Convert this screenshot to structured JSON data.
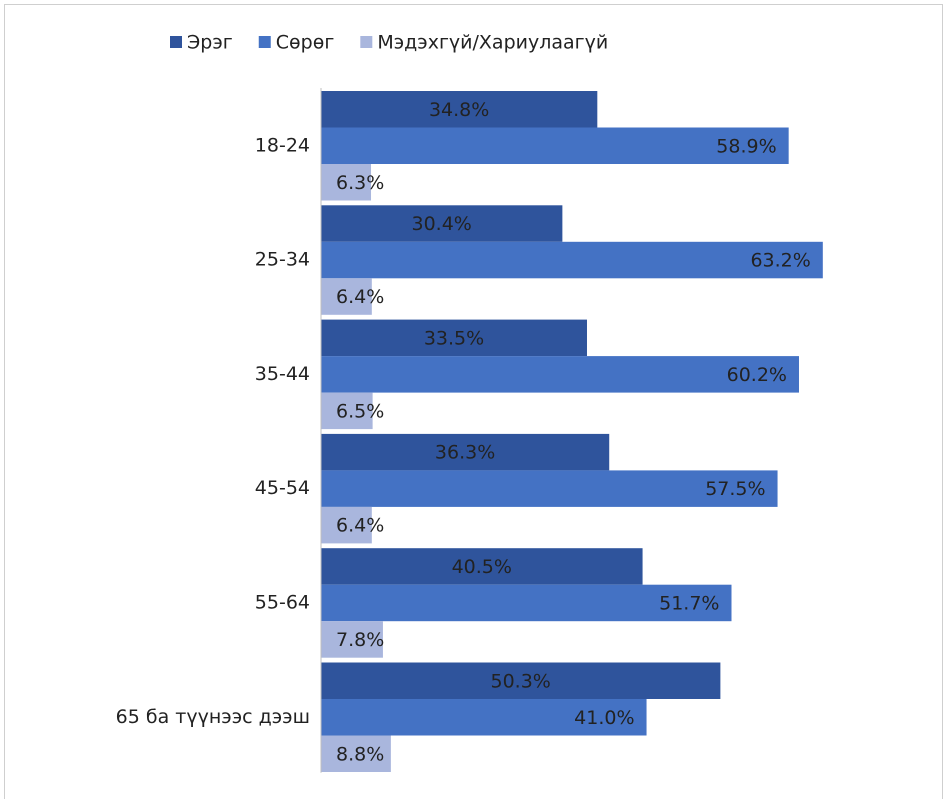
{
  "chart_data": {
    "type": "hbar",
    "categories": [
      "18-24",
      "25-34",
      "35-44",
      "45-54",
      "55-64",
      "65 ба түүнээс дээш"
    ],
    "series": [
      {
        "name": "Эрэг",
        "color": "#2f549c",
        "values": [
          34.8,
          30.4,
          33.5,
          36.3,
          40.5,
          50.3
        ],
        "value_labels": [
          "34.8%",
          "30.4%",
          "33.5%",
          "36.3%",
          "40.5%",
          "50.3%"
        ]
      },
      {
        "name": "Сөрөг",
        "color": "#4472c4",
        "values": [
          58.9,
          63.2,
          60.2,
          57.5,
          51.7,
          41.0
        ],
        "value_labels": [
          "58.9%",
          "63.2%",
          "60.2%",
          "57.5%",
          "51.7%",
          "41.0%"
        ]
      },
      {
        "name": "Мэдэхгүй/Хариулаагүй",
        "color": "#a9b6dd",
        "values": [
          6.3,
          6.4,
          6.5,
          6.4,
          7.8,
          8.8
        ],
        "value_labels": [
          "6.3%",
          "6.4%",
          "6.5%",
          "6.4%",
          "7.8%",
          "8.8%"
        ]
      }
    ],
    "legend": "top"
  }
}
